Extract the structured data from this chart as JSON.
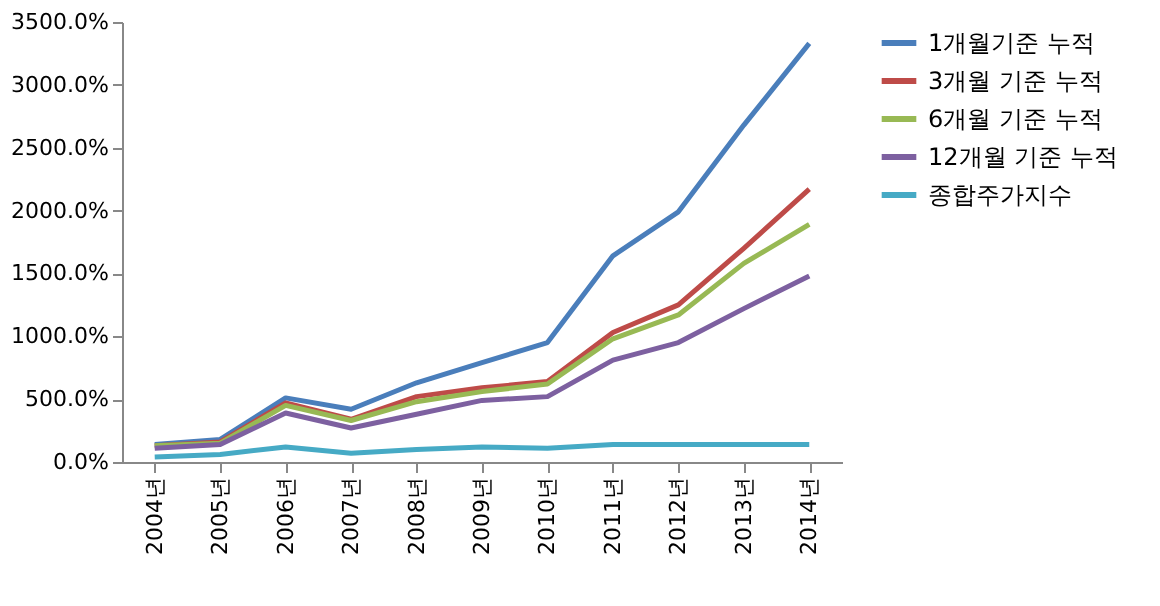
{
  "chart_data": {
    "type": "line",
    "categories": [
      "2004년",
      "2005년",
      "2006년",
      "2007년",
      "2008년",
      "2009년",
      "2010년",
      "2011년",
      "2012년",
      "2013년",
      "2014년"
    ],
    "ylim": [
      0,
      3500
    ],
    "yticks": [
      {
        "value": 0,
        "label": "0.0%"
      },
      {
        "value": 500,
        "label": "500.0%"
      },
      {
        "value": 1000,
        "label": "1000.0%"
      },
      {
        "value": 1500,
        "label": "1500.0%"
      },
      {
        "value": 2000,
        "label": "2000.0%"
      },
      {
        "value": 2500,
        "label": "2500.0%"
      },
      {
        "value": 3000,
        "label": "3000.0%"
      },
      {
        "value": 3500,
        "label": "3500.0%"
      }
    ],
    "grid": false,
    "legend": "right",
    "marker": "none",
    "line_style": "solid",
    "series": [
      {
        "name": "1개월기준 누적",
        "color": "#4a7ebb",
        "values": [
          140,
          180,
          510,
          420,
          630,
          790,
          950,
          1640,
          1990,
          2680,
          3330
        ]
      },
      {
        "name": "3개월 기준 누적",
        "color": "#be4b48",
        "values": [
          130,
          160,
          470,
          340,
          520,
          590,
          640,
          1030,
          1250,
          1700,
          2170
        ]
      },
      {
        "name": "6개월 기준 누적",
        "color": "#98b954",
        "values": [
          130,
          150,
          450,
          330,
          480,
          560,
          620,
          980,
          1170,
          1580,
          1890
        ]
      },
      {
        "name": "12개월 기준 누적",
        "color": "#7d60a0",
        "values": [
          110,
          140,
          390,
          270,
          380,
          490,
          520,
          810,
          950,
          1220,
          1480
        ]
      },
      {
        "name": "종합주가지수",
        "color": "#46aac5",
        "values": [
          40,
          60,
          120,
          70,
          100,
          120,
          110,
          140,
          140,
          140,
          140
        ]
      }
    ]
  }
}
